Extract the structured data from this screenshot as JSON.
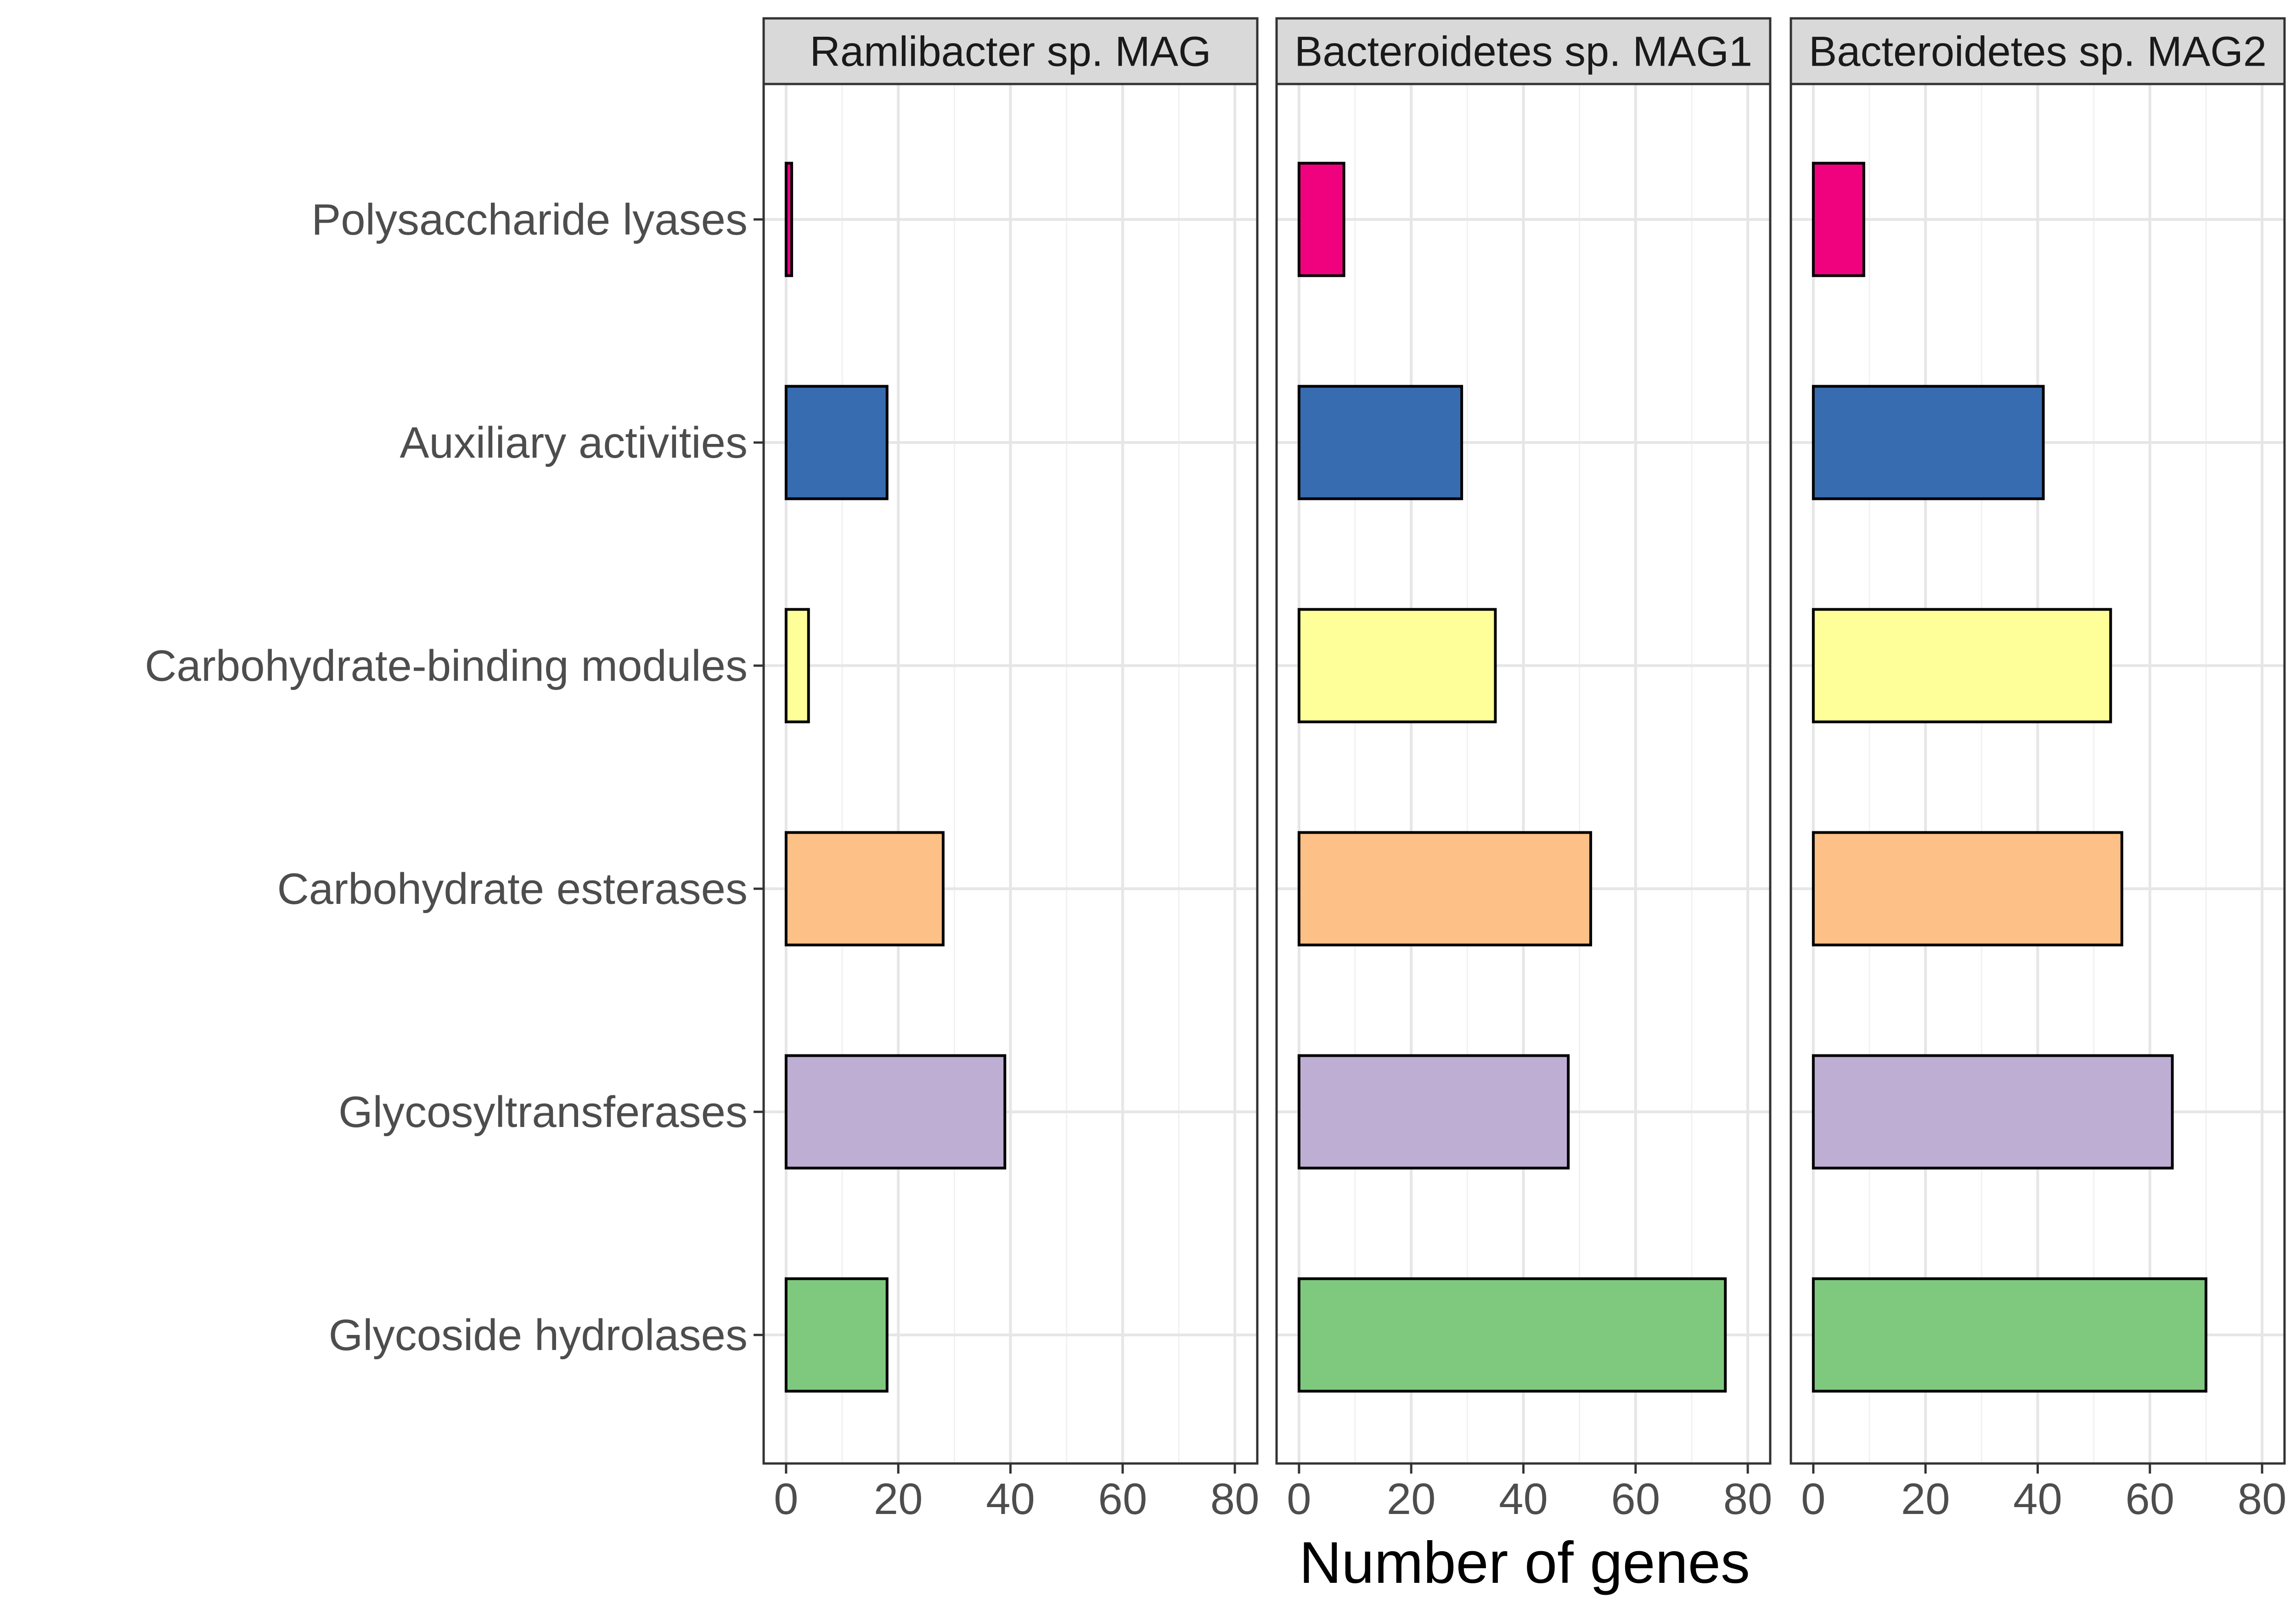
{
  "chart_data": {
    "type": "bar",
    "orientation": "horizontal",
    "categories": [
      "Polysaccharide lyases",
      "Auxiliary activities",
      "Carbohydrate-binding modules",
      "Carbohydrate esterases",
      "Glycosyltransferases",
      "Glycoside hydrolases"
    ],
    "category_colors": [
      "#f0027f",
      "#386cb0",
      "#ffff99",
      "#fdc086",
      "#beaed4",
      "#7fc97f"
    ],
    "panels": [
      {
        "title": "Ramlibacter sp. MAG",
        "values": [
          1,
          18,
          4,
          28,
          39,
          18
        ]
      },
      {
        "title": "Bacteroidetes sp. MAG1",
        "values": [
          8,
          29,
          35,
          52,
          48,
          76
        ]
      },
      {
        "title": "Bacteroidetes sp. MAG2",
        "values": [
          9,
          41,
          53,
          55,
          64,
          70
        ]
      }
    ],
    "xlabel": "Number of genes",
    "ylabel": "",
    "xlim": [
      -4,
      84
    ],
    "xticks": [
      "0",
      "20",
      "40",
      "60",
      "80"
    ],
    "xtick_values": [
      0,
      20,
      40,
      60,
      80
    ],
    "grid": true,
    "facet_strip_color": "#d9d9d9",
    "legend": "none"
  }
}
